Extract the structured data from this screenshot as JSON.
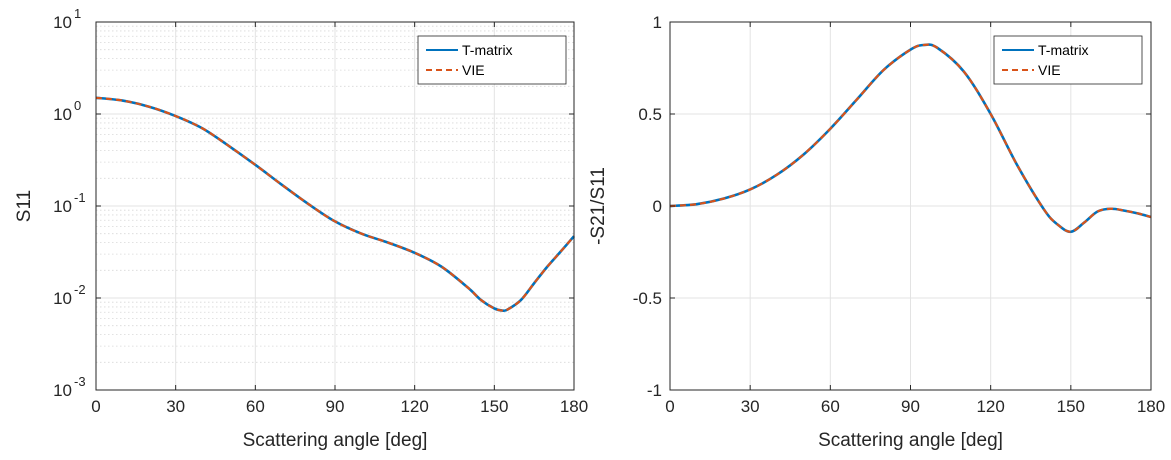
{
  "chart_data": [
    {
      "type": "line",
      "xlabel": "Scattering angle [deg]",
      "ylabel": "S11",
      "xlim": [
        0,
        180
      ],
      "ylim": [
        0.001,
        10
      ],
      "yscale": "log",
      "xticks": [
        0,
        30,
        60,
        90,
        120,
        150,
        180
      ],
      "xtick_labels": [
        "0",
        "30",
        "60",
        "90",
        "120",
        "150",
        "180"
      ],
      "yticks": [
        0.001,
        0.01,
        0.1,
        1,
        10
      ],
      "ytick_labels": [
        {
          "base": "10",
          "exp": "-3"
        },
        {
          "base": "10",
          "exp": "-2"
        },
        {
          "base": "10",
          "exp": "-1"
        },
        {
          "base": "10",
          "exp": "0"
        },
        {
          "base": "10",
          "exp": "1"
        }
      ],
      "grid": true,
      "minor_grid": true,
      "legend_position": "top-right",
      "x": [
        0,
        10,
        20,
        30,
        40,
        50,
        60,
        70,
        80,
        90,
        100,
        110,
        120,
        130,
        140,
        145,
        150,
        153,
        155,
        160,
        165,
        170,
        175,
        180
      ],
      "series": [
        {
          "name": "T-matrix",
          "color": "#0072BD",
          "style": "solid",
          "values": [
            1.5,
            1.4,
            1.2,
            0.95,
            0.7,
            0.45,
            0.28,
            0.17,
            0.105,
            0.068,
            0.05,
            0.04,
            0.031,
            0.022,
            0.013,
            0.0095,
            0.0077,
            0.0073,
            0.0075,
            0.0095,
            0.0145,
            0.022,
            0.032,
            0.047
          ]
        },
        {
          "name": "VIE",
          "color": "#D95319",
          "style": "dashed",
          "values": [
            1.5,
            1.4,
            1.2,
            0.95,
            0.7,
            0.45,
            0.28,
            0.17,
            0.105,
            0.068,
            0.05,
            0.04,
            0.031,
            0.022,
            0.013,
            0.0095,
            0.0077,
            0.0073,
            0.0075,
            0.0095,
            0.0145,
            0.022,
            0.032,
            0.047
          ]
        }
      ]
    },
    {
      "type": "line",
      "xlabel": "Scattering angle [deg]",
      "ylabel": "-S21/S11",
      "xlim": [
        0,
        180
      ],
      "ylim": [
        -1,
        1
      ],
      "yscale": "linear",
      "xticks": [
        0,
        30,
        60,
        90,
        120,
        150,
        180
      ],
      "xtick_labels": [
        "0",
        "30",
        "60",
        "90",
        "120",
        "150",
        "180"
      ],
      "yticks": [
        -1,
        -0.5,
        0,
        0.5,
        1
      ],
      "ytick_labels": [
        "-1",
        "-0.5",
        "0",
        "0.5",
        "1"
      ],
      "grid": true,
      "minor_grid": false,
      "legend_position": "top-right",
      "x": [
        0,
        10,
        20,
        30,
        40,
        50,
        60,
        70,
        80,
        90,
        95,
        100,
        110,
        120,
        130,
        140,
        145,
        150,
        155,
        160,
        165,
        170,
        175,
        180
      ],
      "series": [
        {
          "name": "T-matrix",
          "color": "#0072BD",
          "style": "solid",
          "values": [
            0,
            0.01,
            0.04,
            0.09,
            0.17,
            0.28,
            0.42,
            0.58,
            0.74,
            0.85,
            0.875,
            0.86,
            0.73,
            0.5,
            0.22,
            -0.02,
            -0.1,
            -0.14,
            -0.09,
            -0.03,
            -0.015,
            -0.025,
            -0.04,
            -0.06
          ]
        },
        {
          "name": "VIE",
          "color": "#D95319",
          "style": "dashed",
          "values": [
            0,
            0.01,
            0.04,
            0.09,
            0.17,
            0.28,
            0.42,
            0.58,
            0.74,
            0.85,
            0.875,
            0.86,
            0.73,
            0.5,
            0.22,
            -0.02,
            -0.1,
            -0.14,
            -0.09,
            -0.03,
            -0.015,
            -0.025,
            -0.04,
            -0.06
          ]
        }
      ]
    }
  ]
}
